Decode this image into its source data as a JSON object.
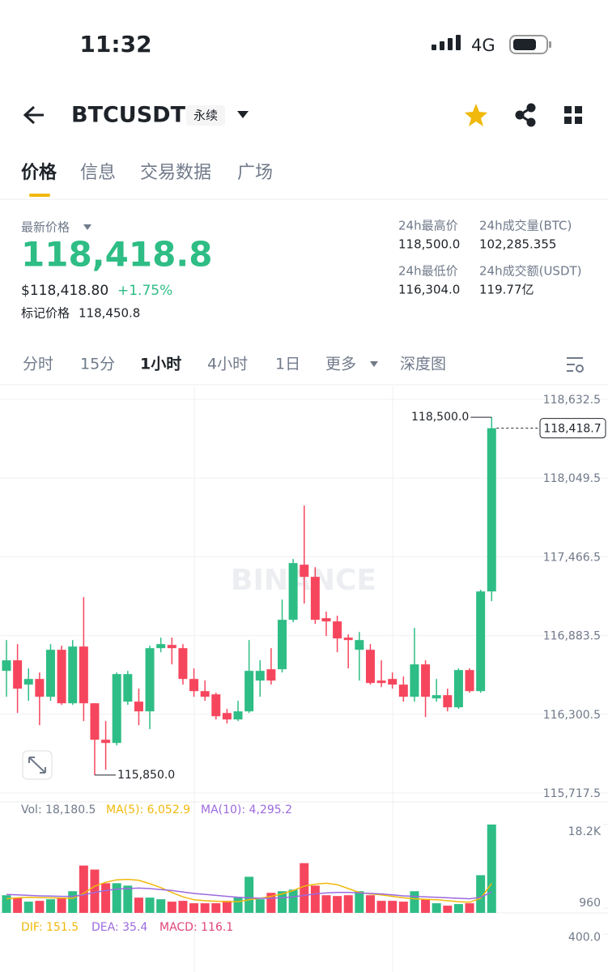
{
  "status_bar": {
    "time": "11:32",
    "network": "4G"
  },
  "header": {
    "symbol": "BTCUSDT",
    "contract": "永续"
  },
  "tabs": [
    "价格",
    "信息",
    "交易数据",
    "广场"
  ],
  "price_info": {
    "label": "最新价格",
    "last_price": "118,418.8",
    "usd_price": "$118,418.80",
    "change": "+1.75%",
    "mark_label": "标记价格",
    "mark_price": "118,450.8"
  },
  "stats": [
    {
      "label": "24h最高价",
      "value": "118,500.0"
    },
    {
      "label": "24h成交量(BTC)",
      "value": "102,285.355"
    },
    {
      "label": "24h最低价",
      "value": "116,304.0"
    },
    {
      "label": "24h成交额(USDT)",
      "value": "119.77亿"
    }
  ],
  "timeframes": [
    "分时",
    "15分",
    "1小时",
    "4小时",
    "1日",
    "更多",
    "深度图"
  ],
  "chart_data": {
    "type": "candlestick",
    "watermark": "BINANCE",
    "up_color": "#2ebd85",
    "down_color": "#f6465d",
    "grid": true,
    "open": [
      116622,
      116700,
      116520,
      116562,
      116430,
      116778,
      116382,
      116802,
      116382,
      116112,
      116088,
      116394,
      116394,
      116322,
      116790,
      116814,
      116790,
      116562,
      116472,
      116448,
      116310,
      116262,
      116322,
      116550,
      116634,
      116634,
      117000,
      117408,
      117318,
      117012,
      116988,
      116868,
      116778,
      116778,
      116550,
      116562,
      116520,
      116430,
      116670,
      116418,
      116442,
      116352,
      116628,
      116472,
      117210
    ],
    "high": [
      116850,
      116820,
      116640,
      116610,
      116820,
      116808,
      116850,
      117168,
      116382,
      116250,
      116610,
      116622,
      116490,
      116808,
      116868,
      116868,
      116820,
      116640,
      116550,
      116460,
      116340,
      116400,
      116850,
      116700,
      116790,
      117150,
      117450,
      117846,
      117390,
      117060,
      117030,
      116892,
      116910,
      116820,
      116700,
      116610,
      116580,
      116940,
      116700,
      116562,
      116490,
      116640,
      116640,
      117222,
      118500
    ],
    "low": [
      116430,
      116310,
      116400,
      116220,
      116400,
      116370,
      116370,
      116250,
      115850,
      115890,
      116070,
      116370,
      116220,
      116190,
      116760,
      116670,
      116520,
      116430,
      116400,
      116262,
      116232,
      116250,
      116310,
      116430,
      116520,
      116610,
      116982,
      117120,
      116970,
      116880,
      116760,
      116640,
      116550,
      116520,
      116502,
      116490,
      116394,
      116394,
      116280,
      116394,
      116322,
      116340,
      116460,
      116460,
      117138
    ],
    "close": [
      116700,
      116490,
      116562,
      116430,
      116778,
      116382,
      116802,
      116382,
      116112,
      116088,
      116598,
      116598,
      116322,
      116790,
      116820,
      116790,
      116562,
      116472,
      116430,
      116286,
      116262,
      116322,
      116622,
      116622,
      116550,
      117000,
      117420,
      117318,
      117000,
      116988,
      116862,
      116850,
      116850,
      116532,
      116532,
      116520,
      116430,
      116670,
      116430,
      116442,
      116352,
      116628,
      116472,
      117210,
      118418.7
    ],
    "ylim": [
      115651.5,
      118728.5
    ],
    "yticks": [
      {
        "value": 118632.5,
        "label": "118,632.5"
      },
      {
        "value": 118049.5,
        "label": "118,049.5"
      },
      {
        "value": 117466.5,
        "label": "117,466.5"
      },
      {
        "value": 116883.5,
        "label": "116,883.5"
      },
      {
        "value": 116300.5,
        "label": "116,300.5"
      },
      {
        "value": 115717.5,
        "label": "115,717.5"
      }
    ],
    "last_price": {
      "value": 118418.7,
      "label": "118,418.7"
    },
    "high_label": {
      "value": 118500,
      "label": "118,500.0"
    },
    "low_label": {
      "value": 115850,
      "label": "115,850.0"
    },
    "volume": {
      "legend": "Vol: 18,180.5",
      "ylim": [
        0,
        19500
      ],
      "yticks": [
        {
          "value": 18200,
          "label": "18.2K"
        },
        960
      ],
      "values": [
        3630,
        3135,
        2310,
        2475,
        2805,
        3135,
        4455,
        9735,
        8910,
        6105,
        6105,
        5610,
        3135,
        3135,
        2805,
        2310,
        2475,
        1980,
        1980,
        1980,
        2475,
        3135,
        7425,
        2805,
        4125,
        4455,
        4785,
        10230,
        5610,
        3630,
        3465,
        3630,
        4455,
        3630,
        2475,
        2475,
        2310,
        4455,
        2805,
        1980,
        1485,
        1815,
        1980,
        7755,
        18180.5
      ],
      "ma": [
        {
          "name": "MA(5): 6,052.9",
          "color": "#f0b90b",
          "values": [
            2900,
            3100,
            3200,
            3150,
            3100,
            3050,
            3000,
            4000,
            5500,
            6300,
            6800,
            6900,
            6700,
            6000,
            5200,
            4200,
            3300,
            2700,
            2500,
            2400,
            2300,
            2300,
            2700,
            3000,
            3400,
            3900,
            4600,
            5500,
            5900,
            6100,
            5800,
            5000,
            4200,
            3900,
            3700,
            3400,
            3100,
            2900,
            2800,
            2700,
            2500,
            2300,
            2200,
            3000,
            6052.9
          ]
        },
        {
          "name": "MA(10): 4,295.2",
          "color": "#9c6ade",
          "values": [
            3800,
            3700,
            3600,
            3500,
            3450,
            3400,
            3400,
            3700,
            4200,
            4600,
            4900,
            5000,
            5100,
            5000,
            4800,
            4600,
            4300,
            4000,
            3800,
            3600,
            3400,
            3200,
            3100,
            3000,
            3000,
            3100,
            3300,
            3600,
            3900,
            4100,
            4200,
            4200,
            4100,
            4000,
            3900,
            3700,
            3500,
            3400,
            3300,
            3200,
            3100,
            3000,
            2900,
            3200,
            4295.2
          ]
        }
      ]
    },
    "macd": {
      "ylim": [
        0,
        600
      ],
      "yticks": [
        {
          "value": 400,
          "label": "400.0"
        }
      ],
      "legend": [
        {
          "name": "DIF: 151.5",
          "color": "#f0b90b"
        },
        {
          "name": "DEA: 35.4",
          "color": "#9c6ade"
        },
        {
          "name": "MACD: 116.1",
          "color": "#e0457b"
        }
      ]
    }
  }
}
